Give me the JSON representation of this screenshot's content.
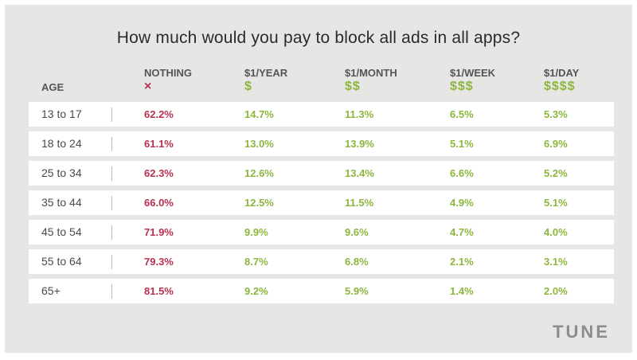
{
  "title": "How much would you pay to block all ads in all apps?",
  "colors": {
    "red": "#b8314f",
    "green": "#8cb63c",
    "text": "#555555"
  },
  "chart_data": {
    "type": "table",
    "title": "How much would you pay to block all ads in all apps?",
    "row_header": "AGE",
    "columns": [
      {
        "label": "NOTHING",
        "symbol": "×",
        "color": "red"
      },
      {
        "label": "$1/YEAR",
        "symbol": "$",
        "color": "green"
      },
      {
        "label": "$1/MONTH",
        "symbol": "$$",
        "color": "green"
      },
      {
        "label": "$1/WEEK",
        "symbol": "$$$",
        "color": "green"
      },
      {
        "label": "$1/DAY",
        "symbol": "$$$$",
        "color": "green"
      }
    ],
    "rows": [
      {
        "age": "13 to 17",
        "values": [
          "62.2%",
          "14.7%",
          "11.3%",
          "6.5%",
          "5.3%"
        ]
      },
      {
        "age": "18 to 24",
        "values": [
          "61.1%",
          "13.0%",
          "13.9%",
          "5.1%",
          "6.9%"
        ]
      },
      {
        "age": "25 to 34",
        "values": [
          "62.3%",
          "12.6%",
          "13.4%",
          "6.6%",
          "5.2%"
        ]
      },
      {
        "age": "35 to 44",
        "values": [
          "66.0%",
          "12.5%",
          "11.5%",
          "4.9%",
          "5.1%"
        ]
      },
      {
        "age": "45 to 54",
        "values": [
          "71.9%",
          "9.9%",
          "9.6%",
          "4.7%",
          "4.0%"
        ]
      },
      {
        "age": "55 to 64",
        "values": [
          "79.3%",
          "8.7%",
          "6.8%",
          "2.1%",
          "3.1%"
        ]
      },
      {
        "age": "65+",
        "values": [
          "81.5%",
          "9.2%",
          "5.9%",
          "1.4%",
          "2.0%"
        ]
      }
    ]
  },
  "logo": "TUNE"
}
